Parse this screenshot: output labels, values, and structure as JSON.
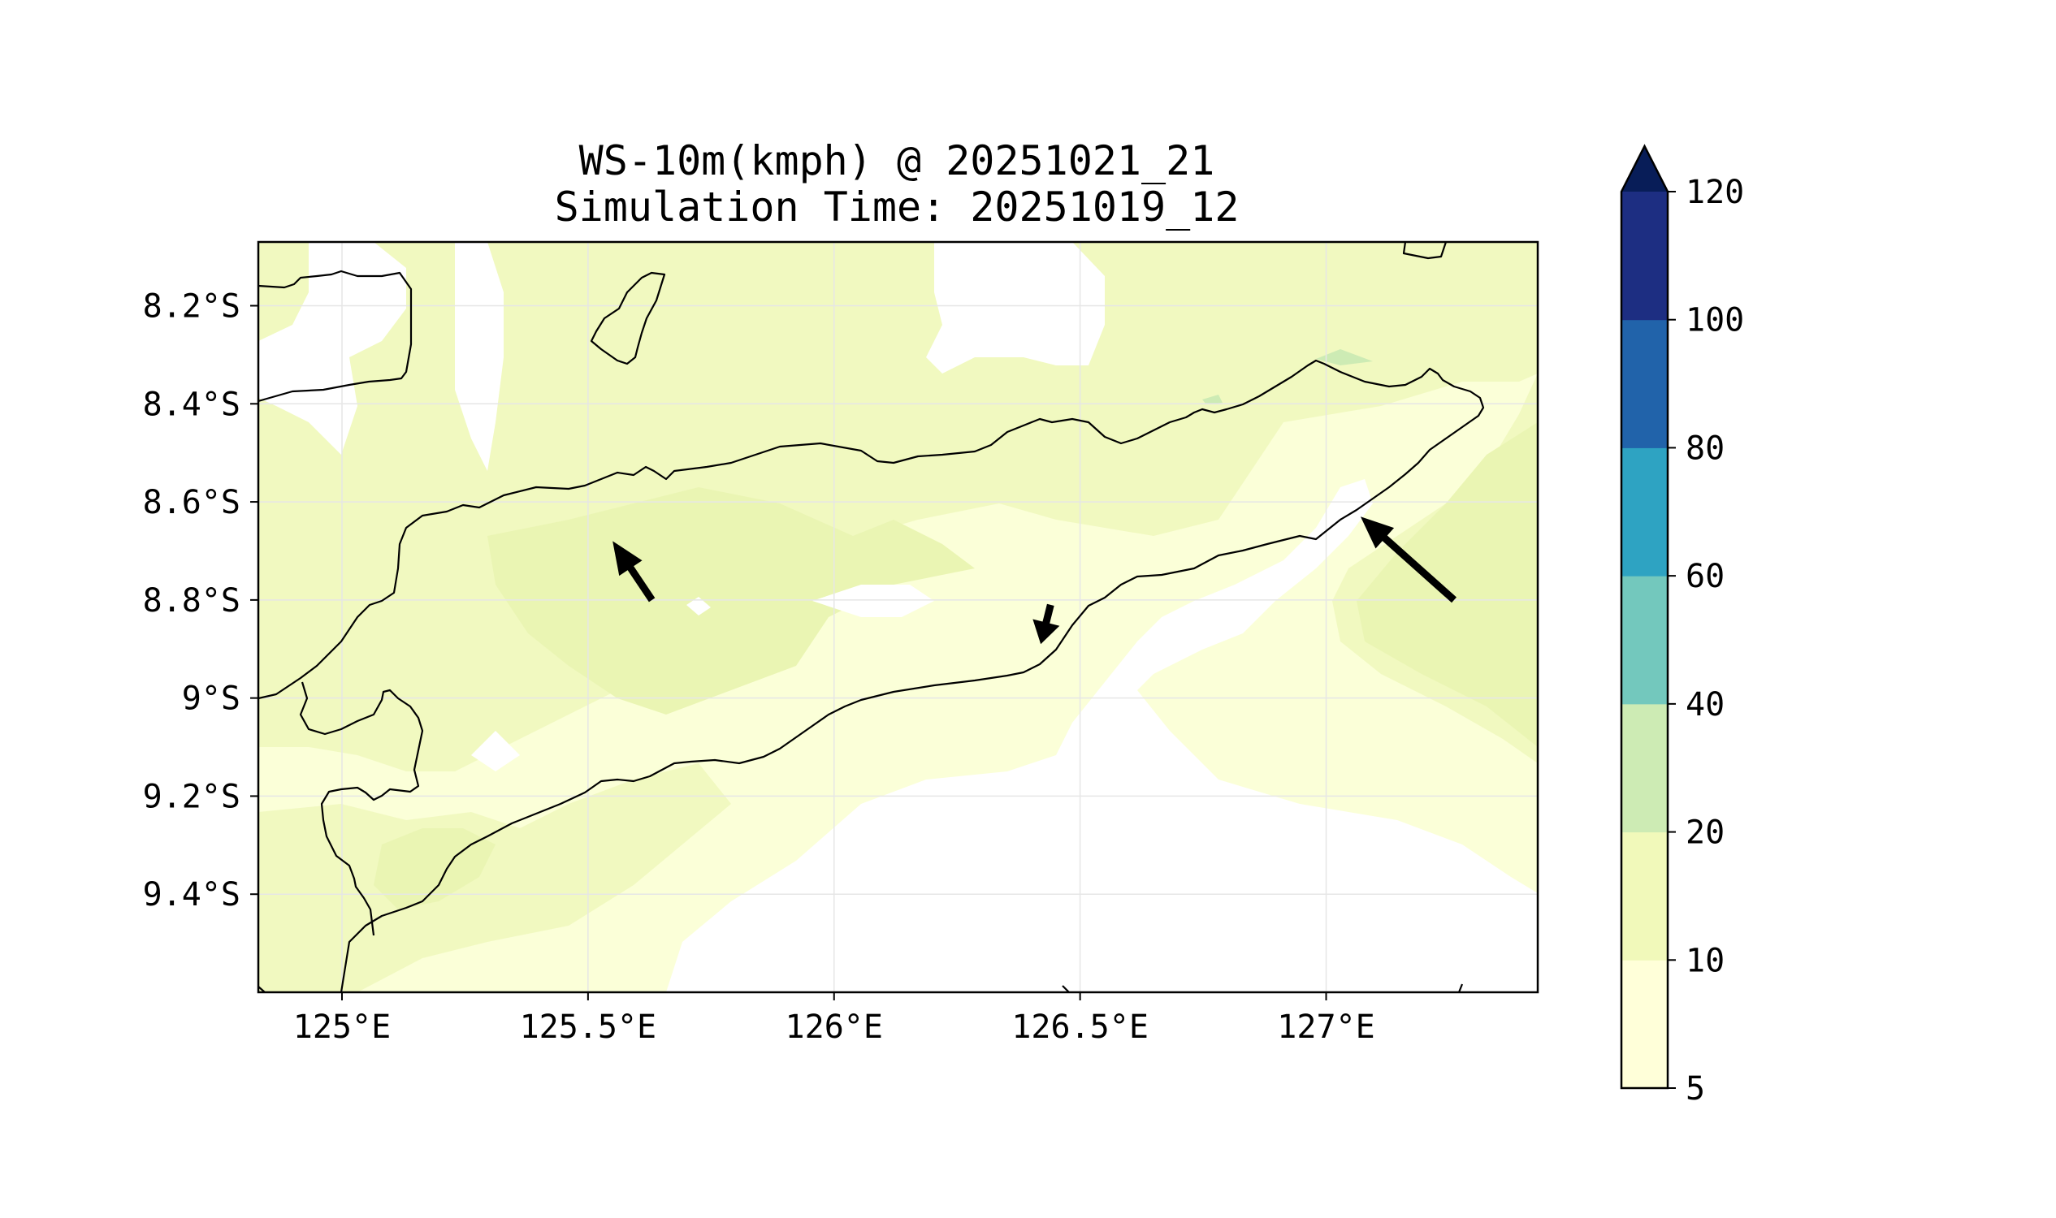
{
  "title": {
    "line1": "WS-10m(kmph) @ 20251021_21",
    "line2": "Simulation Time: 20251019_12"
  },
  "map": {
    "lon_range": [
      124.83,
      127.43
    ],
    "lat_range": [
      -9.6,
      -8.07
    ],
    "x_ticks": [
      {
        "value": 125.0,
        "label": "125°E"
      },
      {
        "value": 125.5,
        "label": "125.5°E"
      },
      {
        "value": 126.0,
        "label": "126°E"
      },
      {
        "value": 126.5,
        "label": "126.5°E"
      },
      {
        "value": 127.0,
        "label": "127°E"
      }
    ],
    "y_ticks": [
      {
        "value": -8.2,
        "label": "8.2°S"
      },
      {
        "value": -8.4,
        "label": "8.4°S"
      },
      {
        "value": -8.6,
        "label": "8.6°S"
      },
      {
        "value": -8.8,
        "label": "8.8°S"
      },
      {
        "value": -9.0,
        "label": "9°S"
      },
      {
        "value": -9.2,
        "label": "9.2°S"
      },
      {
        "value": -9.4,
        "label": "9.4°S"
      }
    ],
    "grid": true,
    "wind_vectors": [
      {
        "lon": 125.63,
        "lat": -8.8,
        "to_lon": 125.55,
        "to_lat": -8.68
      },
      {
        "lon": 126.44,
        "lat": -8.81,
        "to_lon": 126.42,
        "to_lat": -8.89
      },
      {
        "lon": 127.26,
        "lat": -8.8,
        "to_lon": 127.07,
        "to_lat": -8.63
      }
    ]
  },
  "colorbar": {
    "levels": [
      {
        "from": 5,
        "to": 10,
        "color": "#ffffd9"
      },
      {
        "from": 10,
        "to": 20,
        "color": "#f1f9ba"
      },
      {
        "from": 20,
        "to": 40,
        "color": "#cdebb4"
      },
      {
        "from": 40,
        "to": 60,
        "color": "#73c8bd"
      },
      {
        "from": 60,
        "to": 80,
        "color": "#2ea3c2"
      },
      {
        "from": 80,
        "to": 100,
        "color": "#2163aa"
      },
      {
        "from": 100,
        "to": 120,
        "color": "#1d2e82"
      }
    ],
    "extend_color": "#081d58",
    "tick_labels": [
      "5",
      "10",
      "20",
      "40",
      "60",
      "80",
      "100",
      "120"
    ]
  },
  "colors": {
    "band_5_10": "#fbffd8",
    "band_10_20": "#f1f9c0",
    "band_10_20_dark": "#eaf5b3",
    "band_20_40": "#cdebb4",
    "coastline": "#000000",
    "grid": "#e6e6e6",
    "arrow": "#000000"
  }
}
